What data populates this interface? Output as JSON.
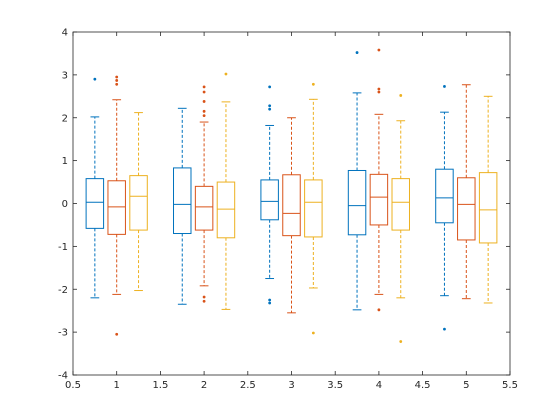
{
  "chart_data": {
    "type": "box",
    "title": "",
    "xlabel": "",
    "ylabel": "",
    "xlim": [
      0.5,
      5.5
    ],
    "ylim": [
      -4,
      4
    ],
    "x_ticks": [
      "0.5",
      "1",
      "1.5",
      "2",
      "2.5",
      "3",
      "3.5",
      "4",
      "4.5",
      "5",
      "5.5"
    ],
    "y_ticks": [
      "-4",
      "-3",
      "-2",
      "-1",
      "0",
      "1",
      "2",
      "3",
      "4"
    ],
    "grid": false,
    "legend": "none",
    "groups": [
      1,
      2,
      3,
      4,
      5
    ],
    "series": [
      {
        "color": "#0072BD",
        "offset": -0.25,
        "boxes": [
          {
            "min": -2.2,
            "q1": -0.58,
            "median": 0.03,
            "q3": 0.58,
            "max": 2.02,
            "outliers": [
              2.9
            ]
          },
          {
            "min": -2.35,
            "q1": -0.7,
            "median": -0.02,
            "q3": 0.83,
            "max": 2.22,
            "outliers": []
          },
          {
            "min": -1.75,
            "q1": -0.38,
            "median": 0.05,
            "q3": 0.55,
            "max": 1.82,
            "outliers": [
              2.72,
              2.28,
              2.2,
              -2.25,
              -2.32
            ]
          },
          {
            "min": -2.48,
            "q1": -0.73,
            "median": -0.05,
            "q3": 0.77,
            "max": 2.58,
            "outliers": [
              3.52
            ]
          },
          {
            "min": -2.15,
            "q1": -0.45,
            "median": 0.13,
            "q3": 0.8,
            "max": 2.13,
            "outliers": [
              2.73,
              -2.93
            ]
          }
        ]
      },
      {
        "color": "#D95319",
        "offset": 0.0,
        "boxes": [
          {
            "min": -2.12,
            "q1": -0.72,
            "median": -0.08,
            "q3": 0.53,
            "max": 2.42,
            "outliers": [
              2.95,
              2.87,
              2.78,
              -3.05
            ]
          },
          {
            "min": -1.92,
            "q1": -0.62,
            "median": -0.08,
            "q3": 0.4,
            "max": 1.9,
            "outliers": [
              2.72,
              2.6,
              2.38,
              2.15,
              2.05,
              -2.18,
              -2.28
            ]
          },
          {
            "min": -2.55,
            "q1": -0.75,
            "median": -0.23,
            "q3": 0.67,
            "max": 2.0,
            "outliers": []
          },
          {
            "min": -2.12,
            "q1": -0.5,
            "median": 0.15,
            "q3": 0.68,
            "max": 2.08,
            "outliers": [
              3.58,
              2.67,
              2.6,
              -2.48
            ]
          },
          {
            "min": -2.22,
            "q1": -0.85,
            "median": -0.02,
            "q3": 0.6,
            "max": 2.77,
            "outliers": []
          }
        ]
      },
      {
        "color": "#EDB120",
        "offset": 0.25,
        "boxes": [
          {
            "min": -2.03,
            "q1": -0.62,
            "median": 0.17,
            "q3": 0.65,
            "max": 2.12,
            "outliers": []
          },
          {
            "min": -2.47,
            "q1": -0.8,
            "median": -0.13,
            "q3": 0.5,
            "max": 2.37,
            "outliers": [
              3.02
            ]
          },
          {
            "min": -1.97,
            "q1": -0.78,
            "median": 0.03,
            "q3": 0.55,
            "max": 2.43,
            "outliers": [
              2.78,
              -3.02
            ]
          },
          {
            "min": -2.2,
            "q1": -0.62,
            "median": 0.03,
            "q3": 0.58,
            "max": 1.93,
            "outliers": [
              2.52,
              -3.22
            ]
          },
          {
            "min": -2.32,
            "q1": -0.92,
            "median": -0.15,
            "q3": 0.72,
            "max": 2.5,
            "outliers": []
          }
        ]
      }
    ]
  }
}
